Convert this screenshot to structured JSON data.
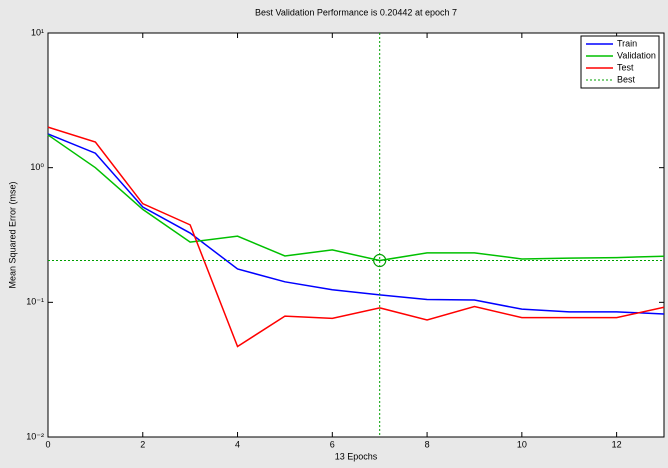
{
  "chart_data": {
    "type": "line",
    "title": "Best Validation Performance is 0.20442 at epoch 7",
    "xlabel": "13 Epochs",
    "ylabel": "Mean Squared Error  (mse)",
    "x": [
      0,
      1,
      2,
      3,
      4,
      5,
      6,
      7,
      8,
      9,
      10,
      11,
      12,
      13
    ],
    "series": [
      {
        "name": "Train",
        "color": "#0000ff",
        "values": [
          1.78,
          1.28,
          0.51,
          0.327,
          0.177,
          0.142,
          0.124,
          0.1135,
          0.105,
          0.104,
          0.089,
          0.085,
          0.085,
          0.082
        ]
      },
      {
        "name": "Validation",
        "color": "#00c000",
        "values": [
          1.75,
          1.0,
          0.49,
          0.28,
          0.31,
          0.221,
          0.245,
          0.20442,
          0.233,
          0.233,
          0.21,
          0.213,
          0.215,
          0.22
        ]
      },
      {
        "name": "Test",
        "color": "#ff0000",
        "values": [
          2.0,
          1.55,
          0.54,
          0.376,
          0.047,
          0.079,
          0.076,
          0.091,
          0.074,
          0.093,
          0.077,
          0.077,
          0.077,
          0.092
        ]
      }
    ],
    "best": {
      "name": "Best",
      "color": "#00a000",
      "epoch": 7,
      "value": 0.20442
    },
    "xlim": [
      0,
      13
    ],
    "xticks": [
      0,
      2,
      4,
      6,
      8,
      10,
      12
    ],
    "ylim": [
      0.01,
      10
    ],
    "log_y": true,
    "yticks": [
      {
        "value": 0.01,
        "label": "10⁻²"
      },
      {
        "value": 0.1,
        "label": "10⁻¹"
      },
      {
        "value": 1,
        "label": "10⁰"
      },
      {
        "value": 10,
        "label": "10¹"
      }
    ],
    "legend": "upper right"
  }
}
